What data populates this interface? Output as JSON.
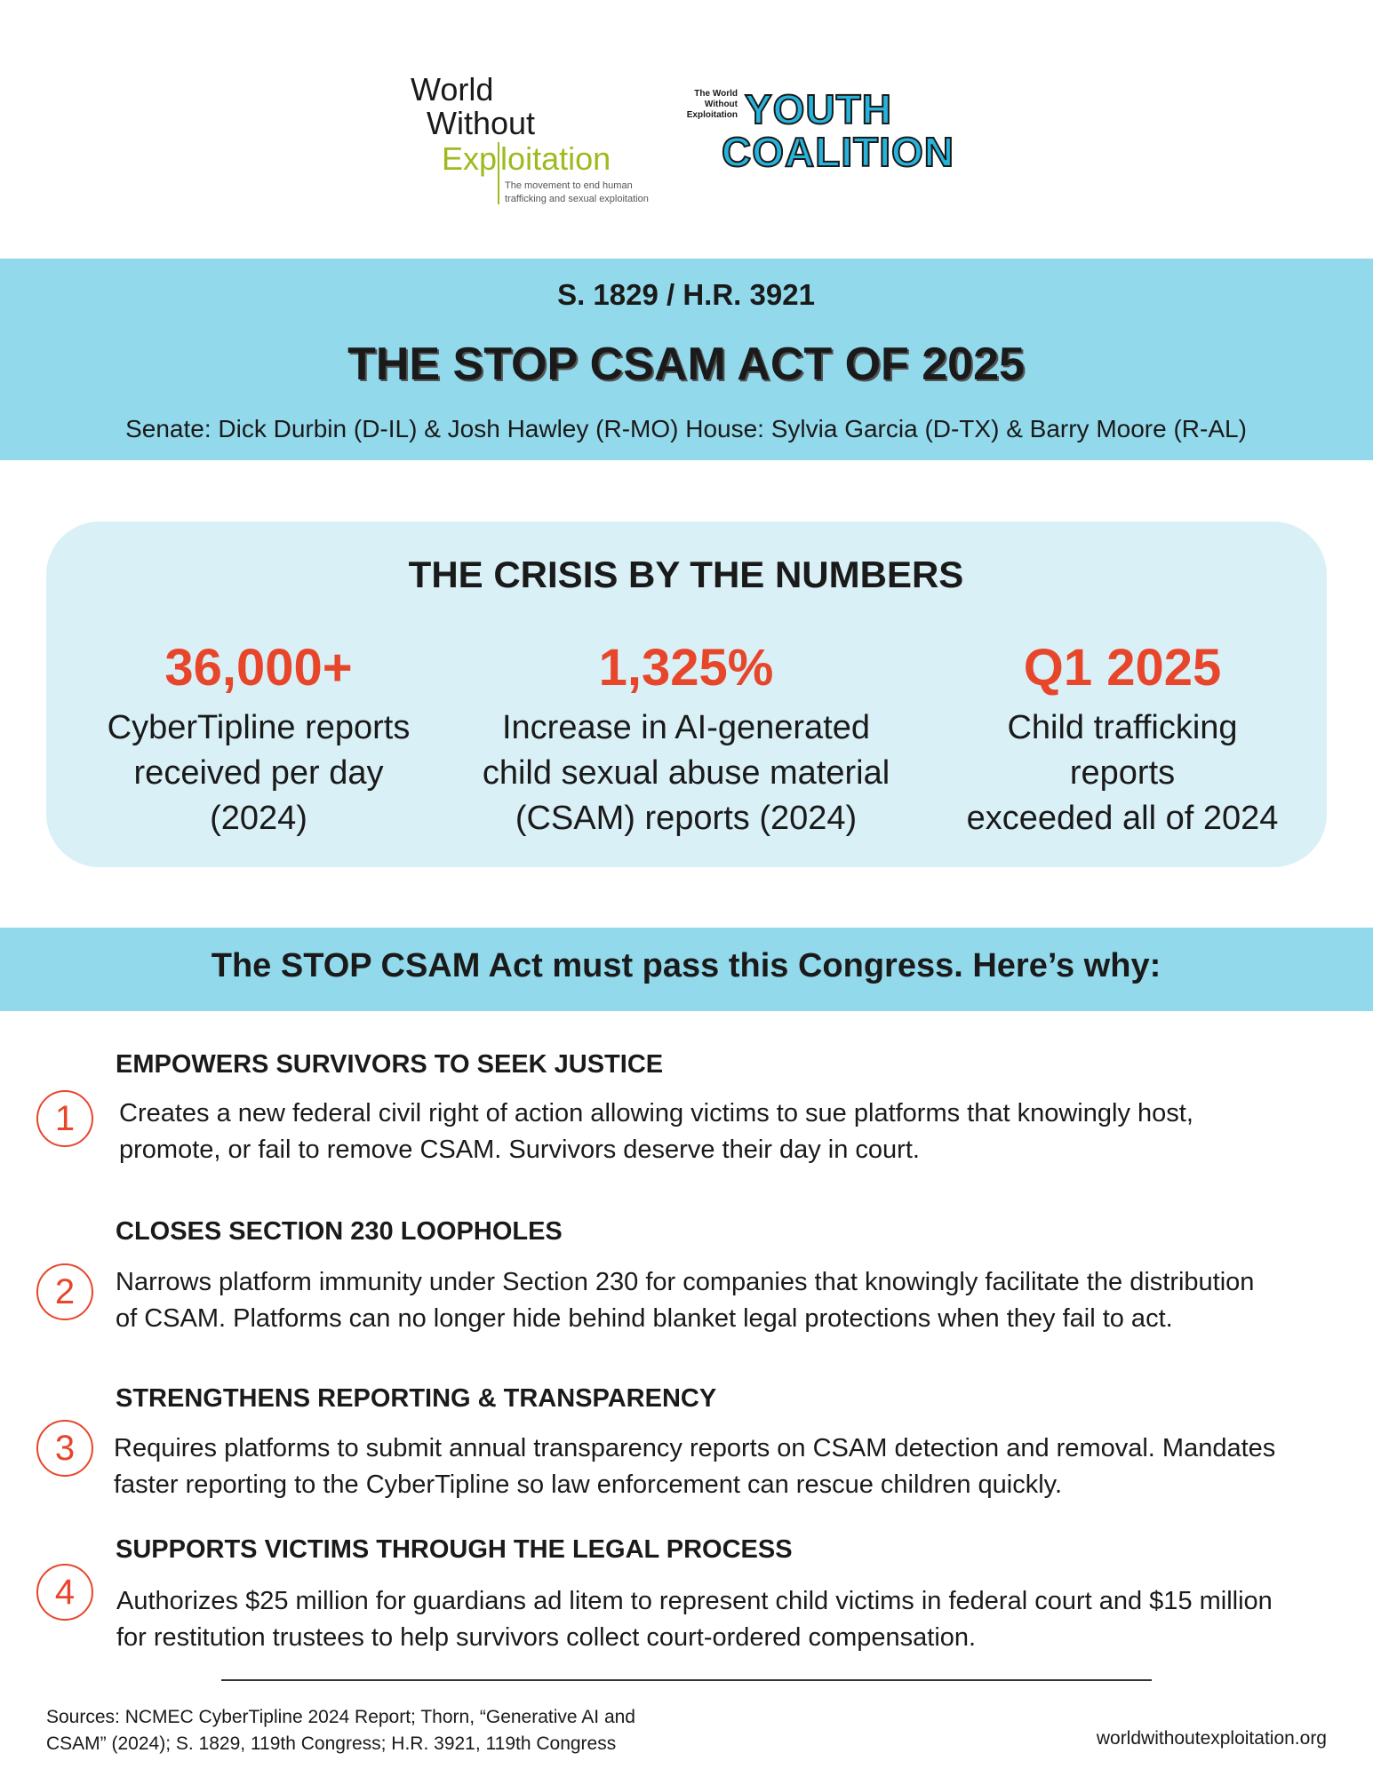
{
  "header": {
    "left_logo": {
      "line1": "World",
      "line2": "Without",
      "line3a": "Exp",
      "line3b": "loitation",
      "tagline": [
        "The movement to end human",
        "trafficking and sexual exploitation"
      ]
    },
    "right_logo": {
      "small": [
        "The World",
        "Without",
        "Exploitation"
      ],
      "youth": "YOUTH",
      "coalition": "COALITION"
    }
  },
  "banner": {
    "bill": "S. 1829 / H.R. 3921",
    "title": "THE STOP CSAM ACT OF 2025",
    "sponsors": "Senate: Dick Durbin (D-IL) & Josh Hawley (R-MO) House: Sylvia Garcia (D-TX) & Barry Moore (R-AL)"
  },
  "stats": {
    "heading": "THE CRISIS BY THE NUMBERS",
    "items": [
      {
        "number": "36,000+",
        "lines": [
          "CyberTipline reports",
          "received per day",
          "(2024)"
        ]
      },
      {
        "number": "1,325%",
        "lines": [
          "Increase in AI-generated",
          "child sexual abuse material",
          "(CSAM)  reports (2024)"
        ]
      },
      {
        "number": "Q1 2025",
        "lines": [
          "Child trafficking",
          "reports",
          "exceeded all of 2024"
        ]
      }
    ]
  },
  "why": {
    "heading": "The STOP CSAM Act must pass this Congress. Here’s why:",
    "items": [
      {
        "number": "1",
        "heading": "EMPOWERS SURVIVORS TO SEEK JUSTICE",
        "lines": [
          "Creates a new federal civil right of action allowing victims to sue platforms that knowingly host,",
          "promote, or fail to remove CSAM. Survivors deserve their day in court."
        ]
      },
      {
        "number": "2",
        "heading": "CLOSES SECTION 230 LOOPHOLES",
        "lines": [
          "Narrows platform immunity under Section 230 for companies that knowingly facilitate the distribution",
          "of CSAM. Platforms can no longer hide behind blanket legal protections when they fail to act."
        ]
      },
      {
        "number": "3",
        "heading": "STRENGTHENS REPORTING & TRANSPARENCY",
        "lines": [
          "Requires platforms to submit annual transparency reports on CSAM detection and removal. Mandates",
          "faster reporting to the CyberTipline so law enforcement can rescue children quickly."
        ]
      },
      {
        "number": "4",
        "heading": "SUPPORTS VICTIMS THROUGH THE LEGAL PROCESS",
        "lines": [
          "Authorizes $25 million for guardians ad litem to represent child victims in federal court and $15 million",
          "for restitution trustees to help survivors collect court-ordered compensation."
        ]
      }
    ]
  },
  "footer": {
    "sources": [
      "Sources: NCMEC CyberTipline 2024 Report; Thorn, “Generative AI and",
      "CSAM” (2024); S. 1829, 119th Congress; H.R. 3921, 119th Congress"
    ],
    "website": "worldwithoutexploitation.org"
  }
}
